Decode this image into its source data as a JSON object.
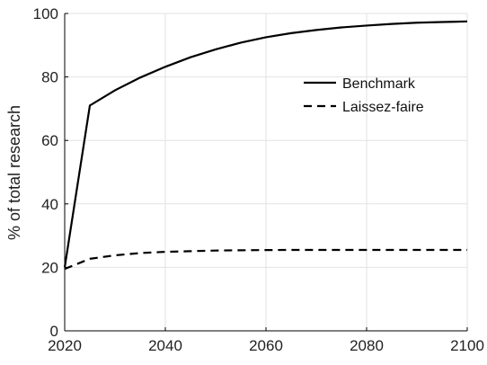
{
  "chart_data": {
    "type": "line",
    "title": "",
    "xlabel": "",
    "ylabel": "% of total research",
    "xlim": [
      2020,
      2100
    ],
    "ylim": [
      0,
      100
    ],
    "xticks": [
      2020,
      2040,
      2060,
      2080,
      2100
    ],
    "yticks": [
      0,
      20,
      40,
      60,
      80,
      100
    ],
    "grid": true,
    "legend_position": "upper right",
    "series": [
      {
        "name": "Benchmark",
        "style": "solid",
        "color": "#000000",
        "x": [
          2020,
          2025,
          2030,
          2035,
          2040,
          2045,
          2050,
          2055,
          2060,
          2065,
          2070,
          2075,
          2080,
          2085,
          2090,
          2095,
          2100
        ],
        "y": [
          20,
          71,
          75.8,
          79.8,
          83.2,
          86.2,
          88.7,
          90.8,
          92.5,
          93.8,
          94.8,
          95.6,
          96.2,
          96.7,
          97.1,
          97.3,
          97.5
        ]
      },
      {
        "name": "Laissez-faire",
        "style": "dashed",
        "color": "#000000",
        "x": [
          2020,
          2025,
          2030,
          2035,
          2040,
          2045,
          2050,
          2055,
          2060,
          2065,
          2070,
          2075,
          2080,
          2085,
          2090,
          2095,
          2100
        ],
        "y": [
          19.5,
          22.7,
          23.8,
          24.5,
          24.9,
          25.1,
          25.3,
          25.4,
          25.45,
          25.5,
          25.5,
          25.5,
          25.5,
          25.5,
          25.5,
          25.5,
          25.5
        ]
      }
    ]
  }
}
